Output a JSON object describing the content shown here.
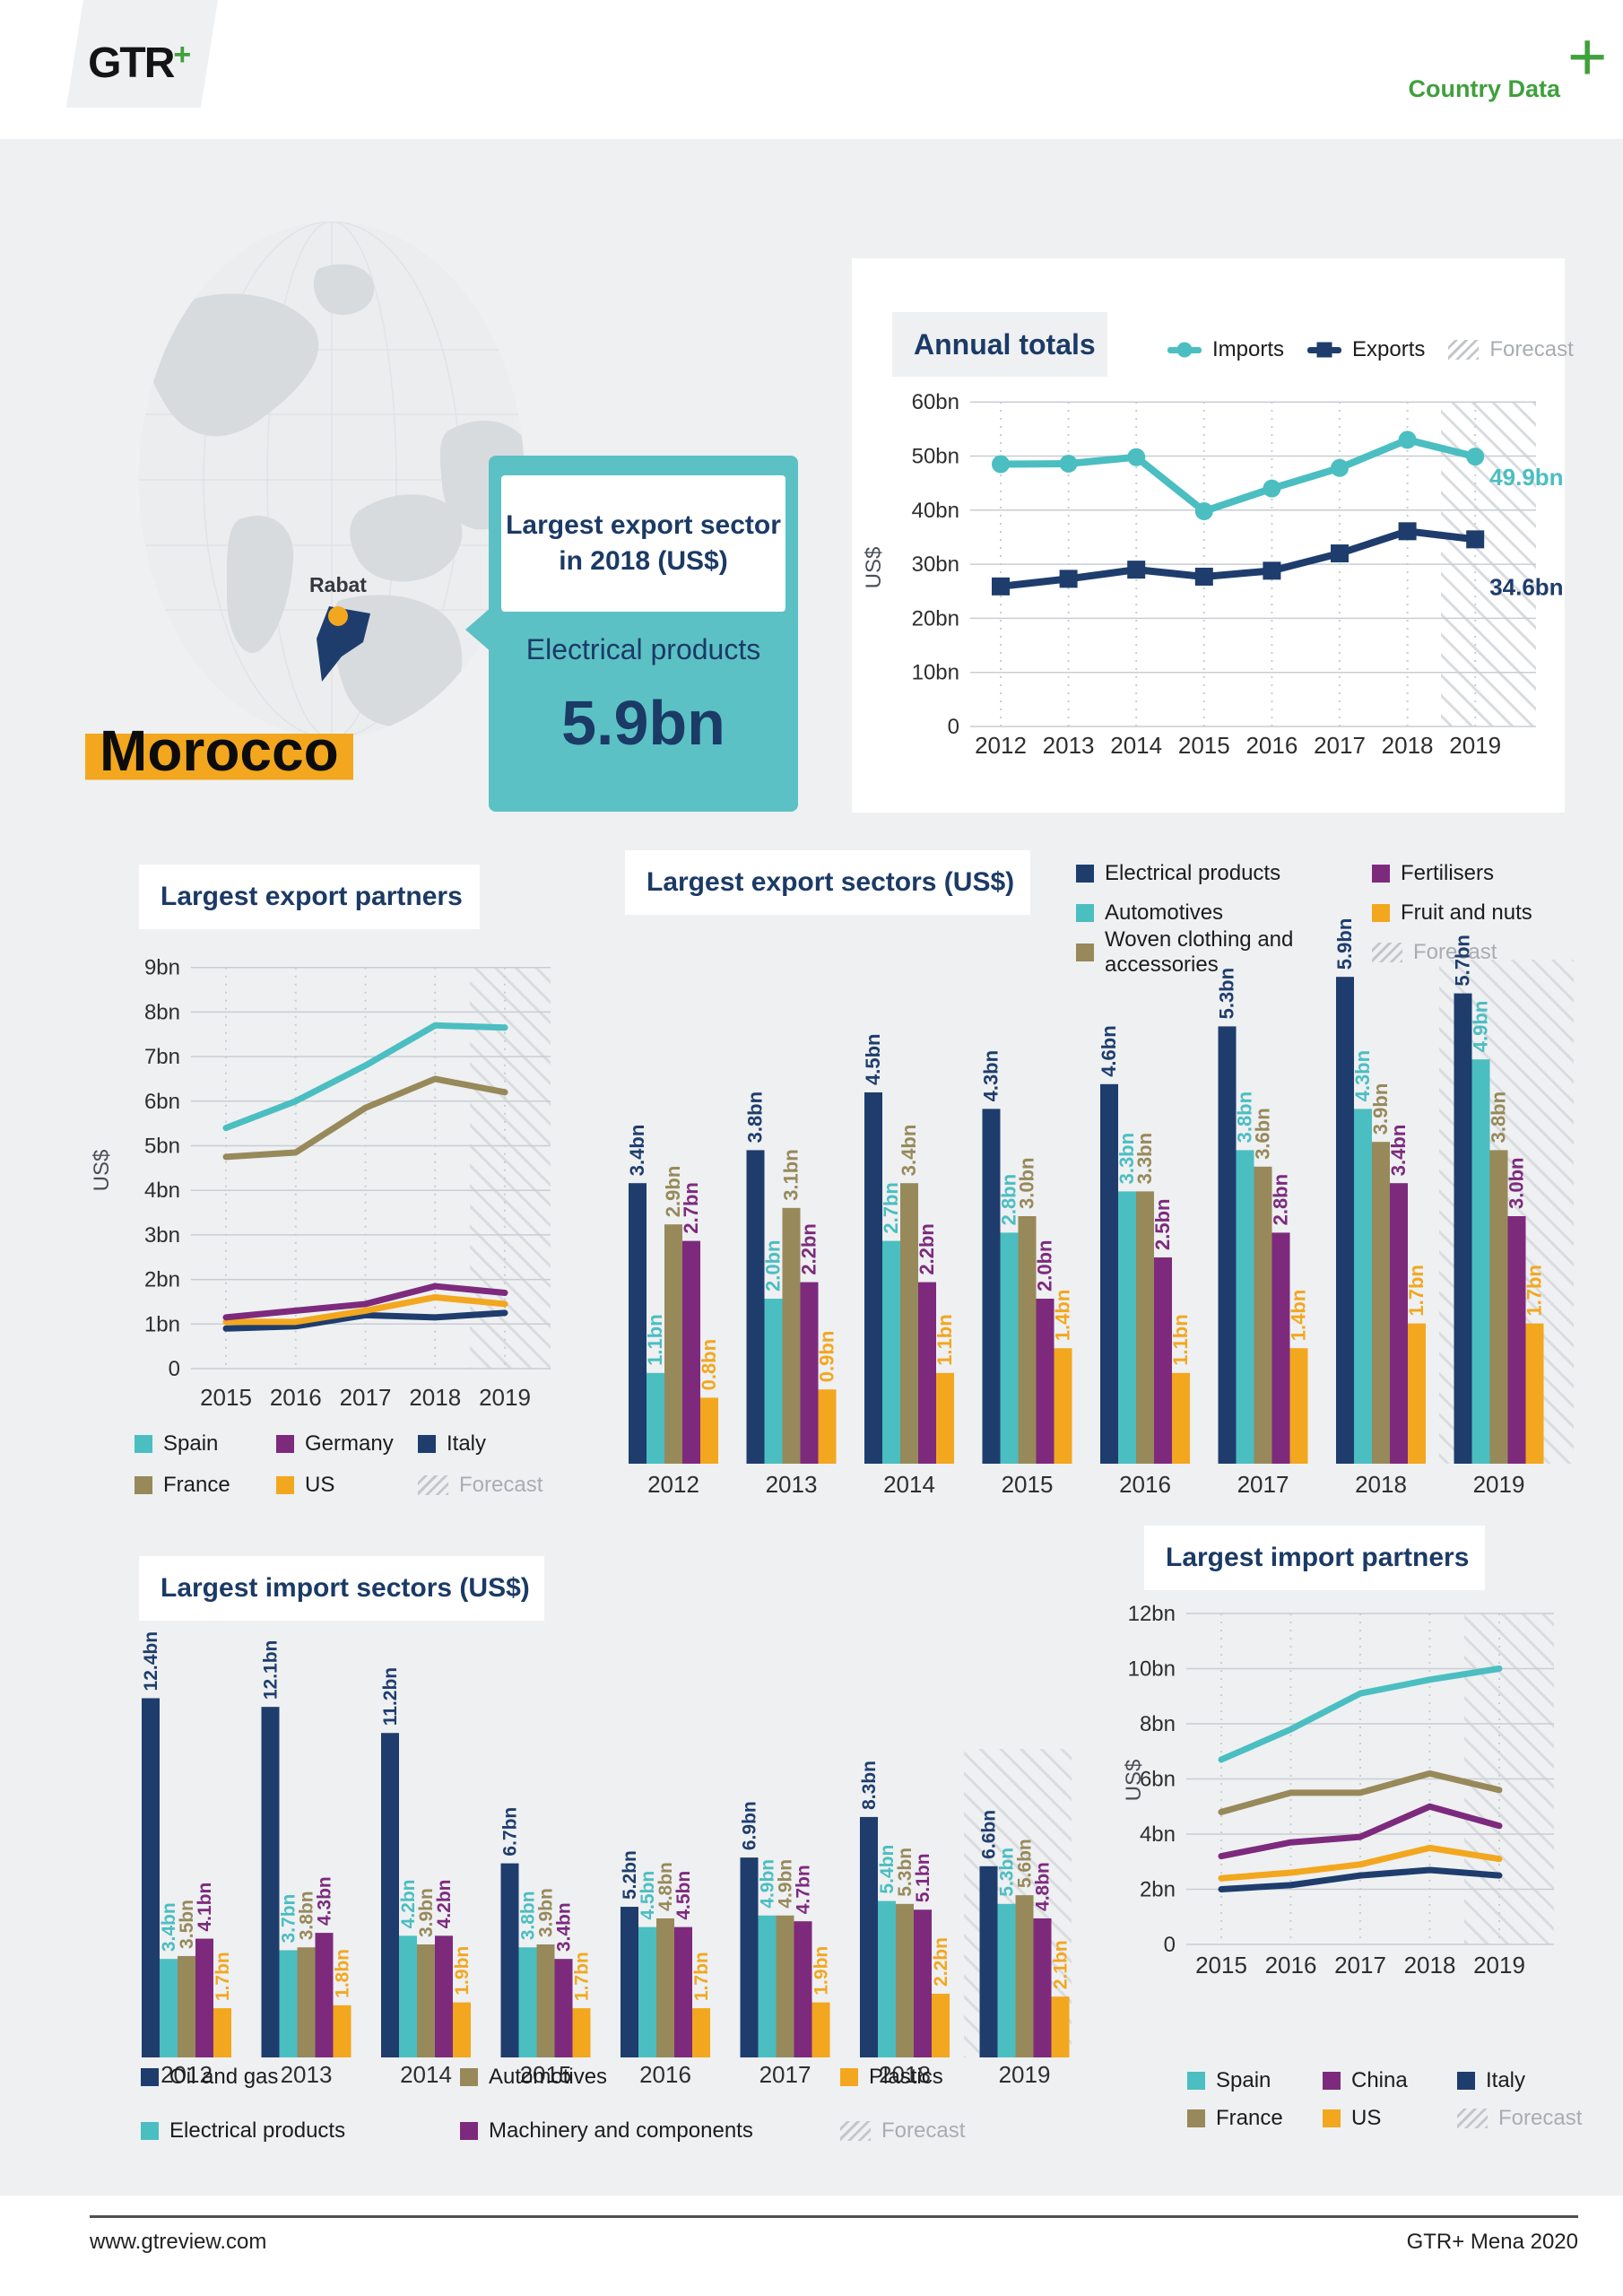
{
  "header": {
    "logo": "GTR",
    "logo_plus": "+",
    "page_label": "Country Data",
    "page_label_plus": "+"
  },
  "map": {
    "city": "Rabat"
  },
  "callout": {
    "title_line1": "Largest export sector",
    "title_line2": "in 2018 (US$)",
    "sector": "Electrical products",
    "value": "5.9bn"
  },
  "country": "Morocco",
  "footer": {
    "site": "www.gtreview.com",
    "edition": "GTR+ Mena 2020"
  },
  "colors": {
    "navy": "#1e3d6d",
    "teal": "#4bbec1",
    "olive": "#97895a",
    "purple": "#7d2a7d",
    "yellow": "#f3a71e",
    "green": "#3fa03c",
    "panel": "#eef0f2",
    "title_text": "#1b3a66",
    "grid": "#c9cdd2",
    "hatch": "#d9dcdf",
    "axis_text": "#2e2e2e",
    "muted": "#a9adb2"
  },
  "chart_data": [
    {
      "id": "annual",
      "type": "line",
      "title": "Annual totals",
      "xlabel": "",
      "ylabel": "US$",
      "x": [
        "2012",
        "2013",
        "2014",
        "2015",
        "2016",
        "2017",
        "2018",
        "2019"
      ],
      "ylim": [
        0,
        60
      ],
      "ytick_step": 10,
      "ytick_suffix": "bn",
      "grid": true,
      "legend_position": "top-right",
      "forecast_region": "2018.5-2019",
      "legend": [
        "Imports",
        "Exports",
        "Forecast"
      ],
      "series": [
        {
          "name": "Imports",
          "color": "teal",
          "marker": "circle",
          "end_label": "49.9bn",
          "values": [
            48.5,
            48.6,
            49.8,
            39.8,
            44.0,
            47.8,
            53.0,
            49.9
          ]
        },
        {
          "name": "Exports",
          "color": "navy",
          "marker": "square",
          "end_label": "34.6bn",
          "values": [
            25.9,
            27.3,
            29.0,
            27.7,
            28.8,
            32.0,
            36.1,
            34.6
          ]
        }
      ]
    },
    {
      "id": "export_partners",
      "type": "line",
      "title": "Largest export partners",
      "xlabel": "",
      "ylabel": "US$",
      "x": [
        "2015",
        "2016",
        "2017",
        "2018",
        "2019"
      ],
      "ylim": [
        0,
        9
      ],
      "ytick_step": 1,
      "ytick_suffix": "bn",
      "grid": true,
      "legend_position": "bottom",
      "forecast_region": "2018.5-2019",
      "legend": [
        "Spain",
        "Germany",
        "Italy",
        "France",
        "US",
        "Forecast"
      ],
      "series": [
        {
          "name": "Spain",
          "color": "teal",
          "values": [
            5.4,
            6.0,
            6.8,
            7.7,
            7.65
          ]
        },
        {
          "name": "France",
          "color": "olive",
          "values": [
            4.75,
            4.85,
            5.85,
            6.5,
            6.2
          ]
        },
        {
          "name": "Germany",
          "color": "purple",
          "values": [
            1.15,
            1.3,
            1.45,
            1.85,
            1.7
          ]
        },
        {
          "name": "US",
          "color": "yellow",
          "values": [
            1.05,
            1.05,
            1.3,
            1.6,
            1.45
          ]
        },
        {
          "name": "Italy",
          "color": "navy",
          "values": [
            0.9,
            0.95,
            1.2,
            1.15,
            1.25
          ]
        }
      ]
    },
    {
      "id": "export_sectors",
      "type": "bar",
      "title": "Largest export sectors (US$)",
      "xlabel": "",
      "ylabel": "US$",
      "x": [
        "2012",
        "2013",
        "2014",
        "2015",
        "2016",
        "2017",
        "2018",
        "2019"
      ],
      "value_label_suffix": "bn",
      "forecast_region": "2019",
      "legend_position": "top-right",
      "legend": [
        "Electrical products",
        "Fertilisers",
        "Automotives",
        "Fruit and nuts",
        "Woven clothing and accessories",
        "Forecast"
      ],
      "series": [
        {
          "name": "Electrical products",
          "color": "navy",
          "values": [
            3.4,
            3.8,
            4.5,
            4.3,
            4.6,
            5.3,
            5.9,
            5.7
          ]
        },
        {
          "name": "Automotives",
          "color": "teal",
          "values": [
            1.1,
            2.0,
            2.7,
            2.8,
            3.3,
            3.8,
            4.3,
            4.9
          ]
        },
        {
          "name": "Woven clothing and accessories",
          "color": "olive",
          "values": [
            2.9,
            3.1,
            3.4,
            3.0,
            3.3,
            3.6,
            3.9,
            3.8
          ]
        },
        {
          "name": "Fertilisers",
          "color": "purple",
          "values": [
            2.7,
            2.2,
            2.2,
            2.0,
            2.5,
            2.8,
            3.4,
            3.0
          ]
        },
        {
          "name": "Fruit and nuts",
          "color": "yellow",
          "values": [
            0.8,
            0.9,
            1.1,
            1.4,
            1.1,
            1.4,
            1.7,
            1.7
          ]
        }
      ]
    },
    {
      "id": "import_sectors",
      "type": "bar",
      "title": "Largest import sectors (US$)",
      "xlabel": "",
      "ylabel": "US$",
      "x": [
        "2012",
        "2013",
        "2014",
        "2015",
        "2016",
        "2017",
        "2018",
        "2019"
      ],
      "value_label_suffix": "bn",
      "forecast_region": "2019",
      "legend_position": "bottom",
      "legend": [
        "Oil and gas",
        "Automotives",
        "Plastics",
        "Electrical products",
        "Machinery and components",
        "Forecast"
      ],
      "series": [
        {
          "name": "Oil and gas",
          "color": "navy",
          "values": [
            12.4,
            12.1,
            11.2,
            6.7,
            5.2,
            6.9,
            8.3,
            6.6
          ]
        },
        {
          "name": "Electrical products",
          "color": "teal",
          "values": [
            3.4,
            3.7,
            4.2,
            3.8,
            4.5,
            4.9,
            5.4,
            5.3
          ]
        },
        {
          "name": "Automotives",
          "color": "olive",
          "values": [
            3.5,
            3.8,
            3.9,
            3.9,
            4.8,
            4.9,
            5.3,
            5.6
          ]
        },
        {
          "name": "Machinery and components",
          "color": "purple",
          "values": [
            4.1,
            4.3,
            4.2,
            3.4,
            4.5,
            4.7,
            5.1,
            4.8
          ]
        },
        {
          "name": "Plastics",
          "color": "yellow",
          "values": [
            1.7,
            1.8,
            1.9,
            1.7,
            1.7,
            1.9,
            2.2,
            2.1
          ]
        }
      ]
    },
    {
      "id": "import_partners",
      "type": "line",
      "title": "Largest import partners",
      "xlabel": "",
      "ylabel": "US$",
      "x": [
        "2015",
        "2016",
        "2017",
        "2018",
        "2019"
      ],
      "ylim": [
        0,
        12
      ],
      "ytick_step": 2,
      "ytick_suffix": "bn",
      "grid": true,
      "legend_position": "bottom",
      "forecast_region": "2018.5-2019",
      "legend": [
        "Spain",
        "China",
        "Italy",
        "France",
        "US",
        "Forecast"
      ],
      "series": [
        {
          "name": "Spain",
          "color": "teal",
          "values": [
            6.7,
            7.8,
            9.1,
            9.6,
            10.0
          ]
        },
        {
          "name": "France",
          "color": "olive",
          "values": [
            4.8,
            5.5,
            5.5,
            6.2,
            5.6
          ]
        },
        {
          "name": "China",
          "color": "purple",
          "values": [
            3.2,
            3.7,
            3.9,
            5.0,
            4.3
          ]
        },
        {
          "name": "US",
          "color": "yellow",
          "values": [
            2.4,
            2.6,
            2.9,
            3.5,
            3.1
          ]
        },
        {
          "name": "Italy",
          "color": "navy",
          "values": [
            2.0,
            2.15,
            2.5,
            2.7,
            2.5
          ]
        }
      ]
    }
  ]
}
